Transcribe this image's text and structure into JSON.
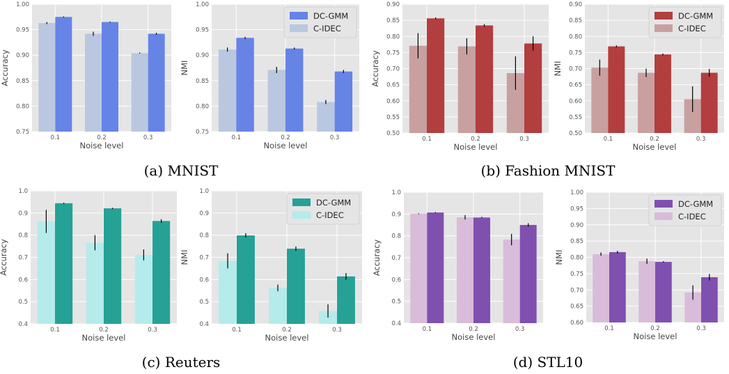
{
  "colors": {
    "mnist": "#6683e6",
    "mnist_light": "#b9c8e0",
    "fashion": "#b33e3e",
    "fashion_light": "#c8a0a0",
    "reuters": "#26a196",
    "reuters_light": "#b5ebeb",
    "stl10": "#8050b0",
    "stl10_light": "#d9bcd9",
    "panel_bg": "#e5e5e5",
    "grid": "#ffffff",
    "errorbar": "#000000"
  },
  "captions": {
    "a": "(a) MNIST",
    "b": "(b) Fashion MNIST",
    "c": "(c) Reuters",
    "d": "(d) STL10"
  },
  "chart_data": [
    {
      "id": "mnist-accuracy",
      "dataset": "MNIST",
      "type": "bar",
      "xlabel": "Noise level",
      "ylabel": "Accuracy",
      "categories": [
        "0.1",
        "0.2",
        "0.3"
      ],
      "ylim": [
        0.75,
        1.0
      ],
      "yticks": [
        "0.75",
        "0.80",
        "0.85",
        "0.90",
        "0.95",
        "1.00"
      ],
      "grid": true,
      "legend": false,
      "series": [
        {
          "name": "C-IDEC",
          "values": [
            0.963,
            0.942,
            0.904
          ],
          "errors": [
            0.002,
            0.004,
            0.001
          ]
        },
        {
          "name": "DC-GMM",
          "values": [
            0.975,
            0.965,
            0.942
          ],
          "errors": [
            0.001,
            0.001,
            0.002
          ]
        }
      ]
    },
    {
      "id": "mnist-nmi",
      "dataset": "MNIST",
      "type": "bar",
      "xlabel": "Noise level",
      "ylabel": "NMI",
      "categories": [
        "0.1",
        "0.2",
        "0.3"
      ],
      "ylim": [
        0.75,
        1.0
      ],
      "yticks": [
        "0.75",
        "0.80",
        "0.85",
        "0.90",
        "0.95",
        "1.00"
      ],
      "grid": true,
      "legend": true,
      "legend_position": "top-right",
      "series": [
        {
          "name": "C-IDEC",
          "values": [
            0.911,
            0.871,
            0.808
          ],
          "errors": [
            0.004,
            0.006,
            0.004
          ]
        },
        {
          "name": "DC-GMM",
          "values": [
            0.934,
            0.913,
            0.868
          ],
          "errors": [
            0.002,
            0.002,
            0.003
          ]
        }
      ]
    },
    {
      "id": "fashion-accuracy",
      "dataset": "Fashion MNIST",
      "type": "bar",
      "xlabel": "Noise level",
      "ylabel": "Accuracy",
      "categories": [
        "0.1",
        "0.2",
        "0.3"
      ],
      "ylim": [
        0.5,
        0.9
      ],
      "yticks": [
        "0.50",
        "0.55",
        "0.60",
        "0.65",
        "0.70",
        "0.75",
        "0.80",
        "0.85",
        "0.90"
      ],
      "grid": true,
      "legend": false,
      "series": [
        {
          "name": "C-IDEC",
          "values": [
            0.771,
            0.769,
            0.686
          ],
          "errors": [
            0.039,
            0.025,
            0.052
          ]
        },
        {
          "name": "DC-GMM",
          "values": [
            0.856,
            0.834,
            0.778
          ],
          "errors": [
            0.003,
            0.004,
            0.022
          ]
        }
      ]
    },
    {
      "id": "fashion-nmi",
      "dataset": "Fashion MNIST",
      "type": "bar",
      "xlabel": "Noise level",
      "ylabel": "NMI",
      "categories": [
        "0.1",
        "0.2",
        "0.3"
      ],
      "ylim": [
        0.5,
        0.9
      ],
      "yticks": [
        "0.50",
        "0.55",
        "0.60",
        "0.65",
        "0.70",
        "0.75",
        "0.80",
        "0.85",
        "0.90"
      ],
      "grid": true,
      "legend": true,
      "legend_position": "top-right",
      "series": [
        {
          "name": "C-IDEC",
          "values": [
            0.703,
            0.687,
            0.605
          ],
          "errors": [
            0.025,
            0.013,
            0.04
          ]
        },
        {
          "name": "DC-GMM",
          "values": [
            0.769,
            0.744,
            0.687
          ],
          "errors": [
            0.003,
            0.003,
            0.012
          ]
        }
      ]
    },
    {
      "id": "reuters-accuracy",
      "dataset": "Reuters",
      "type": "bar",
      "xlabel": "Noise level",
      "ylabel": "Accuracy",
      "categories": [
        "0.1",
        "0.2",
        "0.3"
      ],
      "ylim": [
        0.4,
        1.0
      ],
      "yticks": [
        "0.4",
        "0.5",
        "0.6",
        "0.7",
        "0.8",
        "0.9",
        "1.0"
      ],
      "grid": true,
      "legend": false,
      "series": [
        {
          "name": "C-IDEC",
          "values": [
            0.862,
            0.766,
            0.711
          ],
          "errors": [
            0.052,
            0.034,
            0.025
          ]
        },
        {
          "name": "DC-GMM",
          "values": [
            0.944,
            0.921,
            0.864
          ],
          "errors": [
            0.003,
            0.003,
            0.008
          ]
        }
      ]
    },
    {
      "id": "reuters-nmi",
      "dataset": "Reuters",
      "type": "bar",
      "xlabel": "Noise level",
      "ylabel": "NMI",
      "categories": [
        "0.1",
        "0.2",
        "0.3"
      ],
      "ylim": [
        0.4,
        1.0
      ],
      "yticks": [
        "0.4",
        "0.5",
        "0.6",
        "0.7",
        "0.8",
        "0.9",
        "1.0"
      ],
      "grid": true,
      "legend": true,
      "legend_position": "top-right",
      "series": [
        {
          "name": "C-IDEC",
          "values": [
            0.684,
            0.562,
            0.458
          ],
          "errors": [
            0.034,
            0.015,
            0.03
          ]
        },
        {
          "name": "DC-GMM",
          "values": [
            0.799,
            0.739,
            0.614
          ],
          "errors": [
            0.01,
            0.01,
            0.015
          ]
        }
      ]
    },
    {
      "id": "stl10-accuracy",
      "dataset": "STL10",
      "type": "bar",
      "xlabel": "Noise level",
      "ylabel": "Accuracy",
      "categories": [
        "0.1",
        "0.2",
        "0.3"
      ],
      "ylim": [
        0.4,
        1.0
      ],
      "yticks": [
        "0.4",
        "0.5",
        "0.6",
        "0.7",
        "0.8",
        "0.9",
        "1.0"
      ],
      "grid": true,
      "legend": false,
      "series": [
        {
          "name": "C-IDEC",
          "values": [
            0.901,
            0.885,
            0.783
          ],
          "errors": [
            0.002,
            0.01,
            0.026
          ]
        },
        {
          "name": "DC-GMM",
          "values": [
            0.907,
            0.884,
            0.85
          ],
          "errors": [
            0.002,
            0.003,
            0.008
          ]
        }
      ]
    },
    {
      "id": "stl10-nmi",
      "dataset": "STL10",
      "type": "bar",
      "xlabel": "Noise level",
      "ylabel": "NMI",
      "categories": [
        "0.1",
        "0.2",
        "0.3"
      ],
      "ylim": [
        0.6,
        1.0
      ],
      "yticks": [
        "0.60",
        "0.65",
        "0.70",
        "0.75",
        "0.80",
        "0.85",
        "0.90",
        "0.95",
        "1.00"
      ],
      "grid": true,
      "legend": true,
      "legend_position": "top-right",
      "series": [
        {
          "name": "C-IDEC",
          "values": [
            0.81,
            0.788,
            0.692
          ],
          "errors": [
            0.005,
            0.008,
            0.022
          ]
        },
        {
          "name": "DC-GMM",
          "values": [
            0.816,
            0.786,
            0.739
          ],
          "errors": [
            0.004,
            0.002,
            0.01
          ]
        }
      ]
    }
  ]
}
